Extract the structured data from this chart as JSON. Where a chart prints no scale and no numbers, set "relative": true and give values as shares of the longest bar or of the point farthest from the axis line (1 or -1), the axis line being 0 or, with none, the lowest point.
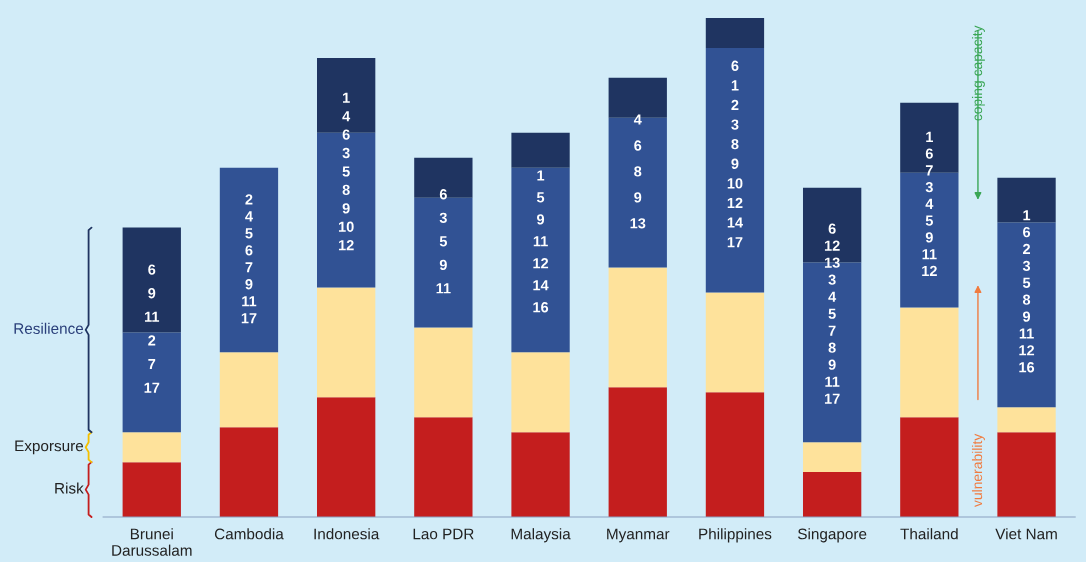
{
  "chart_data": {
    "type": "bar",
    "stacked": true,
    "relative": true,
    "grid": false,
    "legend": false,
    "categories": [
      "Brunei Darussalam",
      "Cambodia",
      "Indonesia",
      "Lao PDR",
      "Malaysia",
      "Myanmar",
      "Philippines",
      "Singapore",
      "Thailand",
      "Viet Nam"
    ],
    "series": [
      {
        "name": "Risk",
        "color": "#c41e1e",
        "values": [
          0.11,
          0.18,
          0.24,
          0.2,
          0.17,
          0.26,
          0.25,
          0.09,
          0.2,
          0.17
        ]
      },
      {
        "name": "Exporsure",
        "color": "#fee29b",
        "values": [
          0.06,
          0.15,
          0.22,
          0.18,
          0.16,
          0.24,
          0.2,
          0.06,
          0.22,
          0.05
        ]
      },
      {
        "color": "#315294",
        "values": [
          0.2,
          0.37,
          0.31,
          0.26,
          0.37,
          0.3,
          0.49,
          0.36,
          0.27,
          0.37
        ]
      },
      {
        "color": "#1f3461",
        "values": [
          0.21,
          0,
          0.15,
          0.08,
          0.07,
          0.08,
          0.06,
          0.15,
          0.14,
          0.09
        ]
      }
    ],
    "annotations": [
      "Resilience",
      "coping capacity",
      "vulnerability",
      "6\n9\n11\n2\n7\n17",
      "2\n4\n5\n6\n7\n9\n11\n17",
      "1\n4\n6\n3\n5\n8\n9\n10\n12",
      "6\n3\n5\n9\n11",
      "1\n5\n9\n11\n12\n14\n16",
      "4\n6\n8\n9\n13",
      "6\n1\n2\n3\n8\n9\n10\n12\n14\n17",
      "6\n12\n13\n3\n4\n5\n7\n8\n9\n11\n17",
      "1\n6\n7\n3\n4\n5\n9\n11\n12",
      "1\n6\n2\n3\n5\n8\n9\n11\n12\n16"
    ]
  }
}
